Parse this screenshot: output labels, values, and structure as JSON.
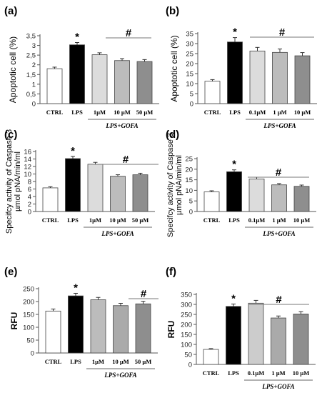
{
  "chart_data": [
    {
      "panel_label": "(a)",
      "type": "bar",
      "ylabel": "Apoptotic cell (%)",
      "ylim": [
        0,
        3.5
      ],
      "yticks": [
        "0",
        "0,5",
        "1",
        "1,5",
        "2",
        "2,5",
        "3",
        "3,5"
      ],
      "categories": [
        "CTRL",
        "LPS",
        "1µM",
        "10 µM",
        "50 µM"
      ],
      "values": [
        1.8,
        3.03,
        2.52,
        2.22,
        2.17
      ],
      "errors": [
        0.08,
        0.12,
        0.1,
        0.1,
        0.1
      ],
      "colors": [
        "#ffffff",
        "#000000",
        "#dcdcdc",
        "#bcbcbc",
        "#8e8e8e"
      ],
      "group_label": "LPS+GOFA",
      "markers": {
        "star": "*",
        "hash": "#"
      }
    },
    {
      "panel_label": "(b)",
      "type": "bar",
      "ylabel": "Apoptotic cell (%)",
      "ylim": [
        0,
        35
      ],
      "yticks": [
        "0",
        "5",
        "10",
        "15",
        "20",
        "25",
        "30",
        "35"
      ],
      "categories": [
        "CTRL",
        "LPS",
        "0.1µM",
        "1 µM",
        "10 µM"
      ],
      "values": [
        11.2,
        30.8,
        26.3,
        25.6,
        23.9
      ],
      "errors": [
        0.8,
        2.2,
        1.8,
        1.7,
        1.6
      ],
      "colors": [
        "#ffffff",
        "#000000",
        "#dcdcdc",
        "#bcbcbc",
        "#8e8e8e"
      ],
      "group_label": "LPS+GOFA",
      "markers": {
        "star": "*",
        "hash": "#"
      }
    },
    {
      "panel_label": "(c)",
      "type": "bar",
      "ylabel": "Specifcy activity of Caspase 3 µmol pNA/min/ml",
      "ylim": [
        0,
        16
      ],
      "yticks": [
        "0",
        "2",
        "4",
        "6",
        "8",
        "10",
        "12",
        "14",
        "16"
      ],
      "categories": [
        "CTRL",
        "LPS",
        "1µM",
        "10 µM",
        "50 µM"
      ],
      "values": [
        6.3,
        14.1,
        12.6,
        9.4,
        9.8
      ],
      "errors": [
        0.3,
        0.6,
        0.5,
        0.4,
        0.4
      ],
      "colors": [
        "#ffffff",
        "#000000",
        "#dcdcdc",
        "#bcbcbc",
        "#8e8e8e"
      ],
      "group_label": "LPS+GOFA",
      "markers": {
        "star": "*",
        "hash": "#"
      }
    },
    {
      "panel_label": "(d)",
      "type": "bar",
      "ylabel": "Specifcy activity of Caspase 3 µmol pNA/min/ml",
      "ylim": [
        0,
        25
      ],
      "yticks": [
        "0",
        "5",
        "10",
        "15",
        "20",
        "25"
      ],
      "categories": [
        "CTRL",
        "LPS",
        "0.1µM",
        "1 µM",
        "10 µM"
      ],
      "values": [
        9.3,
        18.8,
        15.4,
        12.6,
        11.9
      ],
      "errors": [
        0.5,
        0.9,
        0.8,
        0.6,
        0.6
      ],
      "colors": [
        "#ffffff",
        "#000000",
        "#dcdcdc",
        "#bcbcbc",
        "#8e8e8e"
      ],
      "group_label": "LPS+GOFA",
      "markers": {
        "star": "*",
        "hash": "#"
      }
    },
    {
      "panel_label": "(e)",
      "type": "bar",
      "ylabel": "RFU",
      "ylim": [
        0,
        250
      ],
      "yticks": [
        "0",
        "50",
        "100",
        "150",
        "200",
        "250"
      ],
      "categories": [
        "CTRL",
        "LPS",
        "1µM",
        "10 µM",
        "50 µM"
      ],
      "values": [
        163,
        222,
        207,
        184,
        191
      ],
      "errors": [
        8,
        10,
        9,
        9,
        10
      ],
      "colors": [
        "#ffffff",
        "#000000",
        "#bcbcbc",
        "#aaaaaa",
        "#8e8e8e"
      ],
      "group_label": "LPS+GOFA",
      "markers": {
        "star": "*",
        "hash": "#"
      }
    },
    {
      "panel_label": "(f)",
      "type": "bar",
      "ylabel": "RFU",
      "ylim": [
        0,
        350
      ],
      "yticks": [
        "0",
        "50",
        "100",
        "150",
        "200",
        "250",
        "300",
        "350"
      ],
      "categories": [
        "CTRL",
        "LPS",
        "0.1µM",
        "1 µM",
        "10 µM"
      ],
      "values": [
        75,
        290,
        306,
        232,
        252
      ],
      "errors": [
        4,
        12,
        14,
        10,
        12
      ],
      "colors": [
        "#ffffff",
        "#000000",
        "#cccccc",
        "#aaaaaa",
        "#8e8e8e"
      ],
      "group_label": "LPS+GOFA",
      "markers": {
        "star": "*",
        "hash": "#"
      }
    }
  ]
}
